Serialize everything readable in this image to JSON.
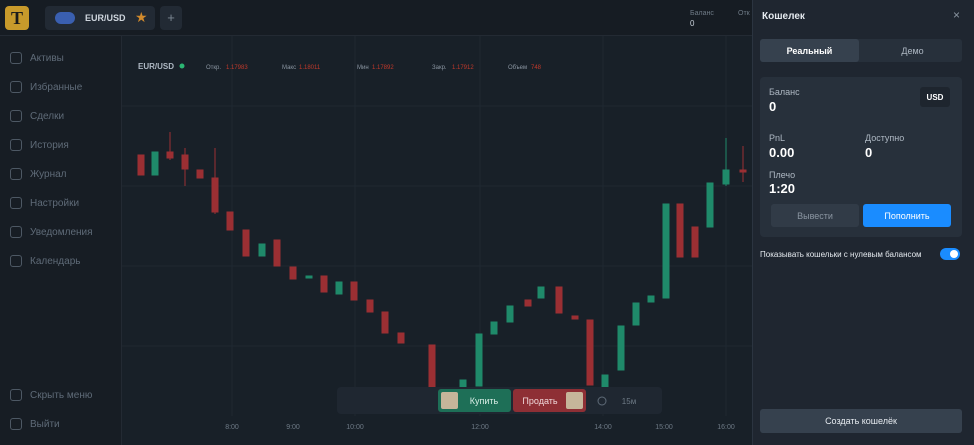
{
  "top_bar": {
    "symbol": "EUR/USD",
    "balance_label": "Баланс",
    "balance_value": "0",
    "cut_label": "Отк"
  },
  "sidebar": {
    "items": [
      "Активы",
      "Избранные",
      "Сделки",
      "История",
      "Журнал",
      "Настройки",
      "Уведомления",
      "Календарь"
    ],
    "hide_menu": "Скрыть меню",
    "logout": "Выйти"
  },
  "chart": {
    "symbol": "EUR/USD",
    "stats": [
      {
        "label": "Откр.",
        "value": "1.17983"
      },
      {
        "label": "Макс",
        "value": "1.18011"
      },
      {
        "label": "Мин",
        "value": "1.17892"
      },
      {
        "label": "Закр.",
        "value": "1.17912"
      },
      {
        "label": "Объем",
        "value": "748"
      }
    ],
    "time_labels": [
      "8:00",
      "9:00",
      "10:00",
      "12:00",
      "14:00",
      "15:00",
      "16:00"
    ]
  },
  "toolbar": {
    "buy": "Купить",
    "sell": "Продать",
    "timeframe": "15м"
  },
  "wallet": {
    "title": "Кошелек",
    "close": "×",
    "tabs": [
      "Реальный",
      "Демо"
    ],
    "balance_label": "Баланс",
    "balance_value": "0",
    "currency": "USD",
    "pnl_label": "PnL",
    "pnl_value": "0.00",
    "available_label": "Доступно",
    "available_value": "0",
    "leverage_label": "Плечо",
    "leverage_value": "1:20",
    "withdraw": "Вывести",
    "deposit": "Пополнить",
    "zero_toggle": "Показывать кошельки с нулевым балансом",
    "create": "Создать кошелёк"
  }
}
